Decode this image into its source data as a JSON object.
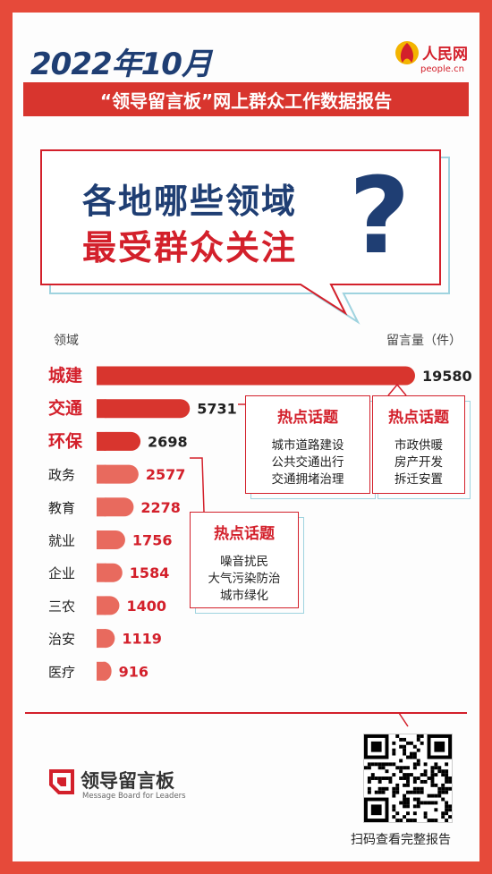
{
  "header": {
    "title": "2022年10月",
    "subtitle": "“领导留言板”网上群众工作数据报告",
    "logo_cn": "人民网",
    "logo_url": "people.cn"
  },
  "headline": {
    "line1": "各地哪些领域",
    "line2": "最受群众关注",
    "mark": "?"
  },
  "chart_data": {
    "type": "bar",
    "orientation": "horizontal",
    "xlabel": "留言量（件）",
    "ylabel": "领域",
    "categories": [
      "城建",
      "交通",
      "环保",
      "政务",
      "教育",
      "就业",
      "企业",
      "三农",
      "治安",
      "医疗"
    ],
    "values": [
      19580,
      5731,
      2698,
      2577,
      2278,
      1756,
      1584,
      1400,
      1119,
      916
    ],
    "highlighted": [
      "城建",
      "交通",
      "环保"
    ],
    "xlim": [
      0,
      19580
    ]
  },
  "callouts": [
    {
      "title": "热点话题",
      "items": [
        "城市道路建设",
        "公共交通出行",
        "交通拥堵治理"
      ],
      "for": "交通"
    },
    {
      "title": "热点话题",
      "items": [
        "市政供暖",
        "房产开发",
        "拆迁安置"
      ],
      "for": "城建"
    },
    {
      "title": "热点话题",
      "items": [
        "噪音扰民",
        "大气污染防治",
        "城市绿化"
      ],
      "for": "环保"
    }
  ],
  "footer": {
    "brand_name": "领导留言板",
    "brand_en": "Message Board for Leaders",
    "qr_caption": "扫码查看完整报告"
  },
  "colors": {
    "accent_red": "#d3202b",
    "bar_dark": "#d8352e",
    "bar_light": "#e86a5e",
    "navy": "#1f3e73",
    "frame": "#e64a3a"
  }
}
